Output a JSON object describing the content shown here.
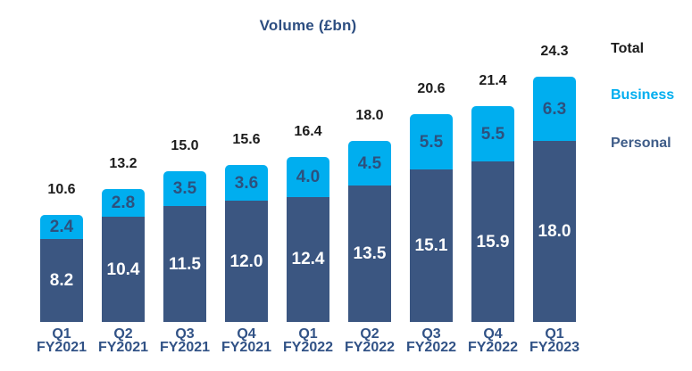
{
  "title": "Volume (£bn)",
  "legend": {
    "total": {
      "label": "Total",
      "color": "#1c1c1c"
    },
    "business": {
      "label": "Business",
      "color": "#00aeef"
    },
    "personal": {
      "label": "Personal",
      "color": "#3e5c88"
    }
  },
  "chart_data": {
    "type": "bar",
    "stacked": true,
    "title": "Volume (£bn)",
    "unit": "£bn",
    "grid": false,
    "legend_position": "right",
    "categories": [
      {
        "quarter": "Q1",
        "fiscal_year": "FY2021"
      },
      {
        "quarter": "Q2",
        "fiscal_year": "FY2021"
      },
      {
        "quarter": "Q3",
        "fiscal_year": "FY2021"
      },
      {
        "quarter": "Q4",
        "fiscal_year": "FY2021"
      },
      {
        "quarter": "Q1",
        "fiscal_year": "FY2022"
      },
      {
        "quarter": "Q2",
        "fiscal_year": "FY2022"
      },
      {
        "quarter": "Q3",
        "fiscal_year": "FY2022"
      },
      {
        "quarter": "Q4",
        "fiscal_year": "FY2022"
      },
      {
        "quarter": "Q1",
        "fiscal_year": "FY2023"
      }
    ],
    "series": [
      {
        "name": "Personal",
        "color": "#3b5681",
        "label_color": "#ffffff",
        "values": [
          8.2,
          10.4,
          11.5,
          12.0,
          12.4,
          13.5,
          15.1,
          15.9,
          18.0
        ]
      },
      {
        "name": "Business",
        "color": "#00aeef",
        "label_color": "#2d517e",
        "values": [
          2.4,
          2.8,
          3.5,
          3.6,
          4.0,
          4.5,
          5.5,
          5.5,
          6.3
        ]
      }
    ],
    "totals": [
      10.6,
      13.2,
      15.0,
      15.6,
      16.4,
      18.0,
      20.6,
      21.4,
      24.3
    ]
  }
}
